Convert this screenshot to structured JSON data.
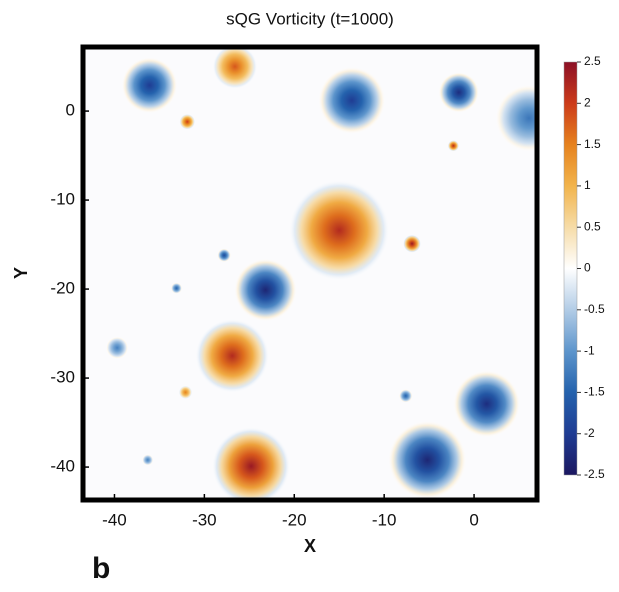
{
  "chart_data": {
    "type": "vorticity",
    "title": "sQG Vorticity (t=1000)",
    "xlabel": "X",
    "ylabel": "Y",
    "panel_label": "b",
    "xlim": [
      -43.5,
      7
    ],
    "xticks": [
      -40,
      -30,
      -20,
      -10,
      0
    ],
    "ylim": [
      -43.7,
      7.2
    ],
    "yticks": [
      -40,
      -30,
      -20,
      -10,
      0
    ],
    "clim": [
      -2.5,
      2.5
    ],
    "cticks": [
      -2.5,
      -2,
      -1.5,
      -1,
      -0.5,
      0,
      0.5,
      1,
      1.5,
      2,
      2.5
    ],
    "x": [
      -13.6,
      -1.7,
      6.1,
      -26.6,
      -36.1,
      -31.9,
      -2.3,
      -15,
      -6.9,
      -23.2,
      -27.8,
      -26.9,
      -24.8,
      -5.2,
      1.4,
      -7.6,
      -32.1,
      -33.1,
      -39.7,
      -36.3
    ],
    "y": [
      1.2,
      2.1,
      -0.8,
      5,
      2.9,
      -1.2,
      -3.9,
      -13.4,
      -14.9,
      -20.1,
      -16.2,
      -27.5,
      -39.9,
      -39.2,
      -32.9,
      -32,
      -31.6,
      -19.9,
      -26.6,
      -39.2
    ],
    "values": [
      -2,
      -2.2,
      -1.3,
      1.8,
      -2,
      2,
      2.2,
      2.2,
      2.4,
      -2.3,
      -1.8,
      2.2,
      2.4,
      -2.3,
      -2.2,
      -1.5,
      1.5,
      -1.5,
      -1.2,
      -1.2
    ],
    "sizes": [
      3,
      1.8,
      3,
      2,
      2.5,
      0.7,
      0.5,
      4.5,
      0.8,
      2.8,
      0.6,
      3.3,
      3.5,
      3.5,
      3,
      0.6,
      0.6,
      0.5,
      1,
      0.5
    ]
  }
}
